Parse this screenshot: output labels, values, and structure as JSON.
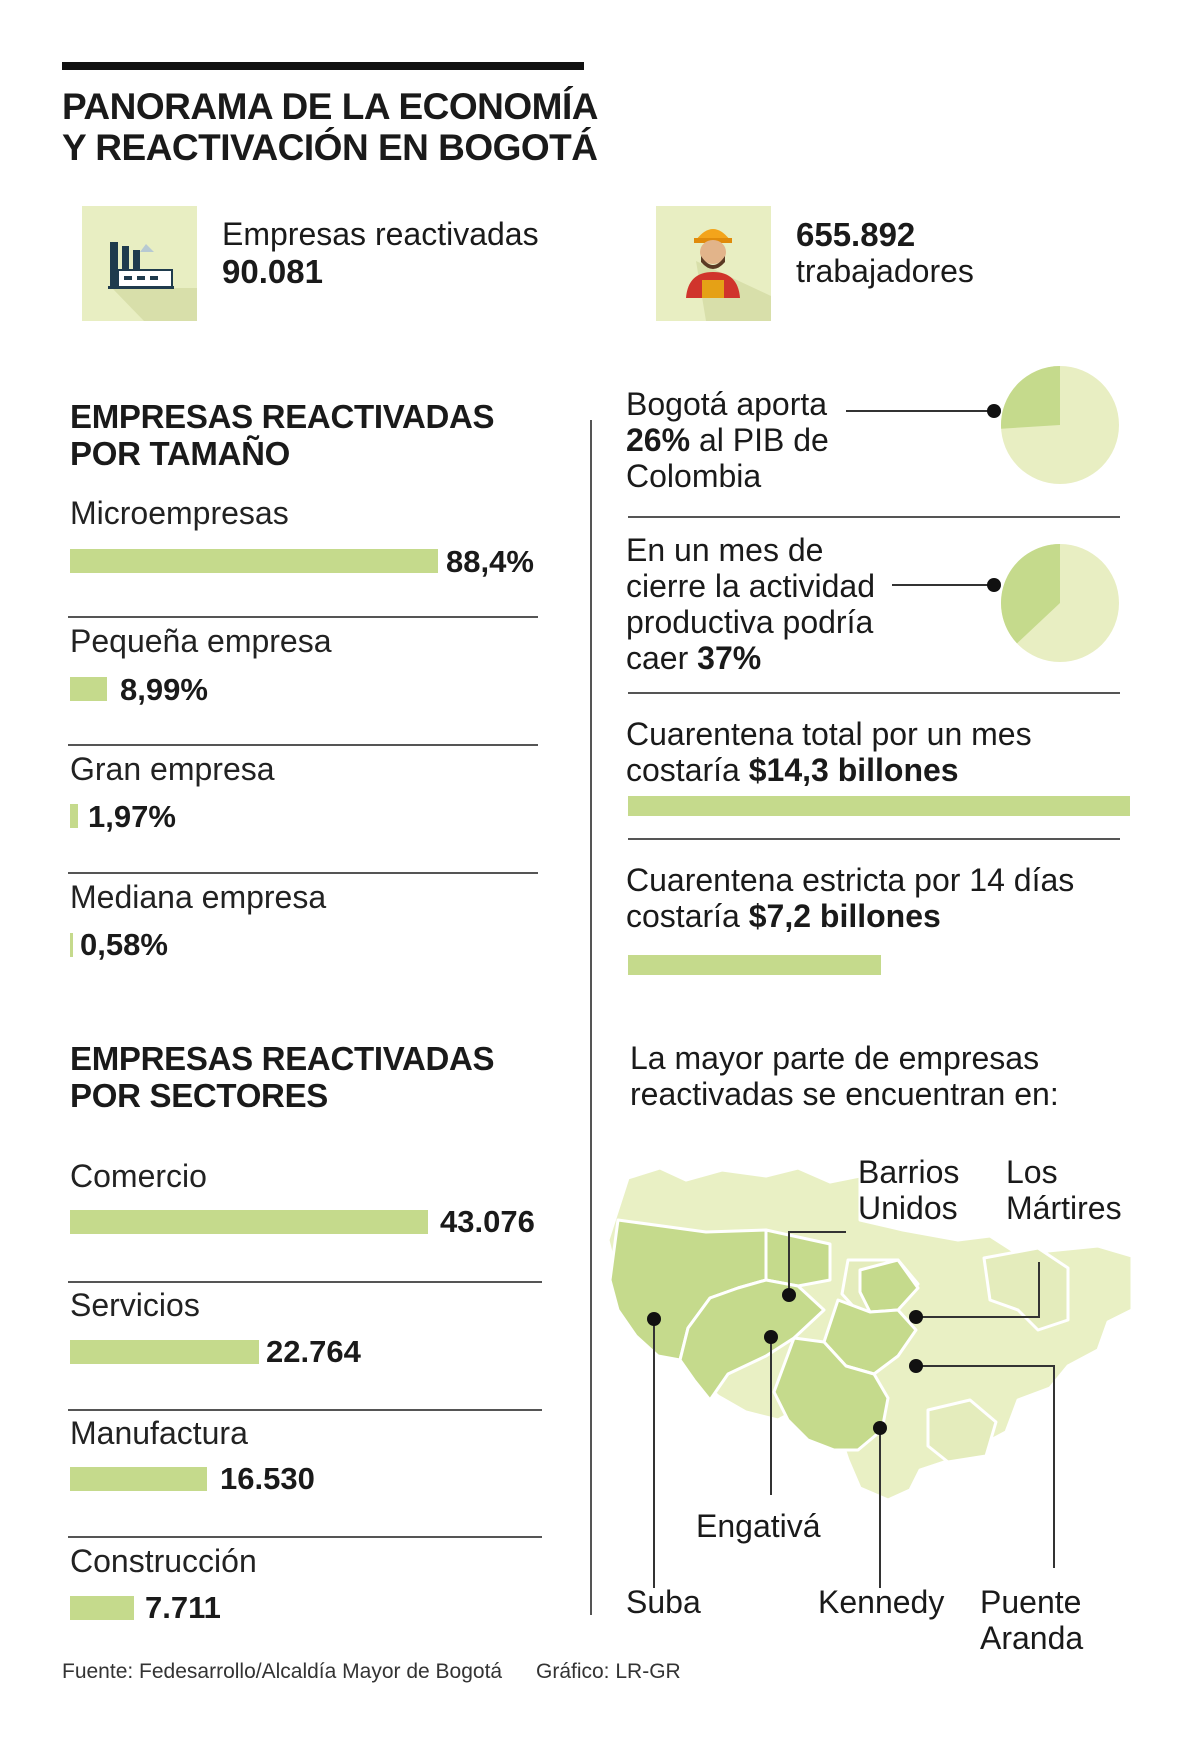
{
  "title_line1": "PANORAMA DE LA ECONOMÍA",
  "title_line2": "Y REACTIVACIÓN EN BOGOTÁ",
  "kpi": {
    "empresas_label": "Empresas reactivadas",
    "empresas_value": "90.081",
    "trabajadores_value": "655.892",
    "trabajadores_label": "trabajadores",
    "factory_icon": "factory-icon",
    "worker_icon": "worker-icon"
  },
  "por_tamano": {
    "heading_line1": "EMPRESAS REACTIVADAS",
    "heading_line2": "POR TAMAÑO",
    "items": [
      {
        "label": "Microempresas",
        "value": "88,4%",
        "num": 88.4
      },
      {
        "label": "Pequeña empresa",
        "value": "8,99%",
        "num": 8.99
      },
      {
        "label": "Gran empresa",
        "value": "1,97%",
        "num": 1.97
      },
      {
        "label": "Mediana empresa",
        "value": "0,58%",
        "num": 0.58
      }
    ]
  },
  "por_sectores": {
    "heading_line1": "EMPRESAS REACTIVADAS",
    "heading_line2": "POR SECTORES",
    "items": [
      {
        "label": "Comercio",
        "value": "43.076",
        "num": 43076
      },
      {
        "label": "Servicios",
        "value": "22.764",
        "num": 22764
      },
      {
        "label": "Manufactura",
        "value": "16.530",
        "num": 16530
      },
      {
        "label": "Construcción",
        "value": "7.711",
        "num": 7711
      }
    ]
  },
  "pib": {
    "line1": "Bogotá aporta",
    "bold": "26%",
    "line2_rest": " al PIB de",
    "line3": "Colombia",
    "share": 26
  },
  "cierre": {
    "line1": "En un mes de",
    "line2": "cierre la actividad",
    "line3": "productiva podría",
    "line4_pre": "caer ",
    "bold": "37%",
    "share": 37
  },
  "cuarentena_total": {
    "line1": "Cuarentena total por un mes",
    "line2_pre": "costaría ",
    "bold": "$14,3 billones",
    "num": 14.3
  },
  "cuarentena_estricta": {
    "line1": "Cuarentena estricta por 14 días",
    "line2_pre": "costaría ",
    "bold": "$7,2 billones",
    "num": 7.2
  },
  "map": {
    "intro_line1": "La mayor parte de empresas",
    "intro_line2": "reactivadas se encuentran en:",
    "labels": {
      "barrios_1": "Barrios",
      "barrios_2": "Unidos",
      "martires_1": "Los",
      "martires_2": "Mártires",
      "engativa": "Engativá",
      "suba": "Suba",
      "kennedy": "Kennedy",
      "puente_1": "Puente",
      "puente_2": "Aranda"
    }
  },
  "footer": {
    "fuente": "Fuente: Fedesarrollo/Alcaldía Mayor de Bogotá",
    "grafico": "Gráfico: LR-GR"
  },
  "colors": {
    "bar": "#c5da8c",
    "pie_light": "#e8eec2",
    "pie_dark": "#c5da8c",
    "map_light": "#e9f0c4",
    "map_dark": "#c5da8c"
  }
}
